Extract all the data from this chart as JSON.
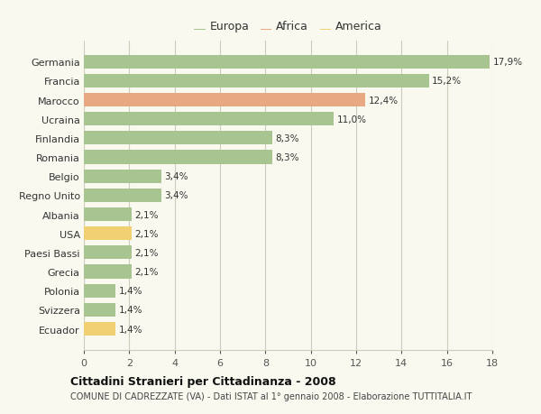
{
  "categories": [
    "Germania",
    "Francia",
    "Marocco",
    "Ucraina",
    "Finlandia",
    "Romania",
    "Belgio",
    "Regno Unito",
    "Albania",
    "USA",
    "Paesi Bassi",
    "Grecia",
    "Polonia",
    "Svizzera",
    "Ecuador"
  ],
  "values": [
    17.9,
    15.2,
    12.4,
    11.0,
    8.3,
    8.3,
    3.4,
    3.4,
    2.1,
    2.1,
    2.1,
    2.1,
    1.4,
    1.4,
    1.4
  ],
  "labels": [
    "17,9%",
    "15,2%",
    "12,4%",
    "11,0%",
    "8,3%",
    "8,3%",
    "3,4%",
    "3,4%",
    "2,1%",
    "2,1%",
    "2,1%",
    "2,1%",
    "1,4%",
    "1,4%",
    "1,4%"
  ],
  "continent": [
    "Europa",
    "Europa",
    "Africa",
    "Europa",
    "Europa",
    "Europa",
    "Europa",
    "Europa",
    "Europa",
    "America",
    "Europa",
    "Europa",
    "Europa",
    "Europa",
    "America"
  ],
  "colors": {
    "Europa": "#a8c490",
    "Africa": "#e8a882",
    "America": "#f0d070"
  },
  "legend": [
    {
      "label": "Europa",
      "color": "#a8c490"
    },
    {
      "label": "Africa",
      "color": "#e8a882"
    },
    {
      "label": "America",
      "color": "#f0d070"
    }
  ],
  "xlim": [
    0,
    18
  ],
  "xticks": [
    0,
    2,
    4,
    6,
    8,
    10,
    12,
    14,
    16,
    18
  ],
  "title": "Cittadini Stranieri per Cittadinanza - 2008",
  "subtitle": "COMUNE DI CADREZZATE (VA) - Dati ISTAT al 1° gennaio 2008 - Elaborazione TUTTITALIA.IT",
  "background_color": "#f9f9f0",
  "grid_color": "#ccccbb"
}
